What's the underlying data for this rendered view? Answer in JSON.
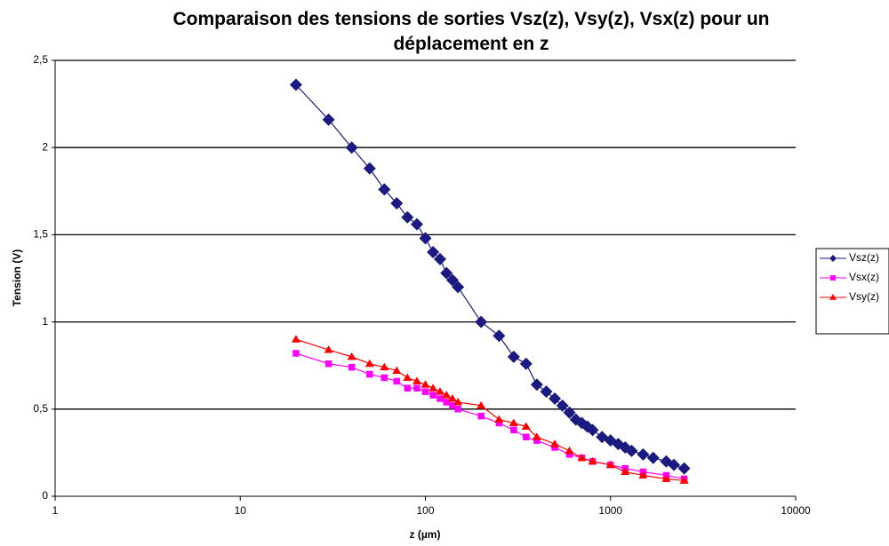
{
  "chart_data": {
    "type": "line",
    "title": "Comparaison des tensions de sorties Vsz(z), Vsy(z), Vsx(z) pour un déplacement en z",
    "xlabel": "z (µm)",
    "ylabel": "Tension (V)",
    "xscale": "log",
    "xlim": [
      1,
      10000
    ],
    "xticks": [
      1,
      10,
      100,
      1000,
      10000
    ],
    "ylim": [
      0,
      2.5
    ],
    "yticks": [
      0,
      {
        "value": 0.5,
        "label": "0,5"
      },
      1,
      {
        "value": 1.5,
        "label": "1,5"
      },
      2,
      {
        "value": 2.5,
        "label": "2,5"
      }
    ],
    "grid": true,
    "legend": "right",
    "series": [
      {
        "name": "Vsz(z)",
        "color": "#1a1a80",
        "marker": "diamond",
        "x": [
          20,
          30,
          40,
          50,
          60,
          70,
          80,
          90,
          100,
          110,
          120,
          130,
          140,
          150,
          200,
          250,
          300,
          350,
          400,
          450,
          500,
          550,
          600,
          650,
          700,
          750,
          800,
          900,
          1000,
          1100,
          1200,
          1300,
          1500,
          1700,
          2000,
          2200,
          2500
        ],
        "values": [
          2.36,
          2.16,
          2.0,
          1.88,
          1.76,
          1.68,
          1.6,
          1.56,
          1.48,
          1.4,
          1.36,
          1.28,
          1.24,
          1.2,
          1.0,
          0.92,
          0.8,
          0.76,
          0.64,
          0.6,
          0.56,
          0.52,
          0.48,
          0.44,
          0.42,
          0.4,
          0.38,
          0.34,
          0.32,
          0.3,
          0.28,
          0.26,
          0.24,
          0.22,
          0.2,
          0.18,
          0.16
        ]
      },
      {
        "name": "Vsx(z)",
        "color": "#ff00ff",
        "marker": "square",
        "x": [
          20,
          30,
          40,
          50,
          60,
          70,
          80,
          90,
          100,
          110,
          120,
          130,
          140,
          150,
          200,
          250,
          300,
          350,
          400,
          500,
          600,
          700,
          800,
          1000,
          1200,
          1500,
          2000,
          2500
        ],
        "values": [
          0.82,
          0.76,
          0.74,
          0.7,
          0.68,
          0.66,
          0.62,
          0.62,
          0.6,
          0.58,
          0.56,
          0.54,
          0.52,
          0.5,
          0.46,
          0.42,
          0.38,
          0.34,
          0.32,
          0.28,
          0.24,
          0.22,
          0.2,
          0.18,
          0.16,
          0.14,
          0.12,
          0.1
        ]
      },
      {
        "name": "Vsy(z)",
        "color": "#ff0000",
        "marker": "triangle",
        "x": [
          20,
          30,
          40,
          50,
          60,
          70,
          80,
          90,
          100,
          110,
          120,
          130,
          140,
          150,
          200,
          250,
          300,
          350,
          400,
          500,
          600,
          700,
          800,
          1000,
          1200,
          1500,
          2000,
          2500
        ],
        "values": [
          0.9,
          0.84,
          0.8,
          0.76,
          0.74,
          0.72,
          0.68,
          0.66,
          0.64,
          0.62,
          0.6,
          0.58,
          0.56,
          0.54,
          0.52,
          0.44,
          0.42,
          0.4,
          0.34,
          0.3,
          0.26,
          0.22,
          0.2,
          0.18,
          0.14,
          0.12,
          0.1,
          0.09
        ]
      }
    ]
  }
}
